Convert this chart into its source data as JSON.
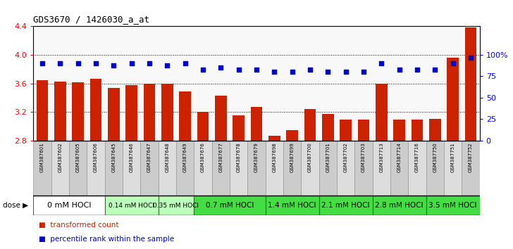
{
  "title": "GDS3670 / 1426030_a_at",
  "samples": [
    "GSM387601",
    "GSM387602",
    "GSM387605",
    "GSM387606",
    "GSM387645",
    "GSM387646",
    "GSM387647",
    "GSM387648",
    "GSM387649",
    "GSM387676",
    "GSM387677",
    "GSM387678",
    "GSM387679",
    "GSM387698",
    "GSM387699",
    "GSM387700",
    "GSM387701",
    "GSM387702",
    "GSM387703",
    "GSM387713",
    "GSM387714",
    "GSM387716",
    "GSM387750",
    "GSM387751",
    "GSM387752"
  ],
  "transformed_counts": [
    3.65,
    3.63,
    3.62,
    3.66,
    3.54,
    3.58,
    3.6,
    3.6,
    3.49,
    3.2,
    3.43,
    3.15,
    3.27,
    2.87,
    2.95,
    3.24,
    3.17,
    3.09,
    3.09,
    3.6,
    3.09,
    3.09,
    3.1,
    3.96,
    4.38
  ],
  "percentile_ranks": [
    90,
    90,
    90,
    90,
    88,
    90,
    90,
    88,
    90,
    83,
    85,
    83,
    83,
    80,
    80,
    83,
    80,
    80,
    80,
    90,
    83,
    83,
    83,
    90,
    97
  ],
  "dose_groups": [
    {
      "label": "0 mM HOCl",
      "start": 0,
      "end": 4,
      "color": "#ffffff",
      "font_size": 8
    },
    {
      "label": "0.14 mM HOCl",
      "start": 4,
      "end": 7,
      "color": "#bbffbb",
      "font_size": 6.5
    },
    {
      "label": "0.35 mM HOCl",
      "start": 7,
      "end": 9,
      "color": "#bbffbb",
      "font_size": 6.5
    },
    {
      "label": "0.7 mM HOCl",
      "start": 9,
      "end": 13,
      "color": "#44dd44",
      "font_size": 7.5
    },
    {
      "label": "1.4 mM HOCl",
      "start": 13,
      "end": 16,
      "color": "#44dd44",
      "font_size": 7.5
    },
    {
      "label": "2.1 mM HOCl",
      "start": 16,
      "end": 19,
      "color": "#44dd44",
      "font_size": 7.5
    },
    {
      "label": "2.8 mM HOCl",
      "start": 19,
      "end": 22,
      "color": "#44dd44",
      "font_size": 7.5
    },
    {
      "label": "3.5 mM HOCl",
      "start": 22,
      "end": 25,
      "color": "#44dd44",
      "font_size": 7.5
    }
  ],
  "ylim": [
    2.8,
    4.4
  ],
  "yticks": [
    2.8,
    3.2,
    3.6,
    4.0,
    4.4
  ],
  "right_yticks_vals": [
    0,
    25,
    50,
    75,
    100
  ],
  "right_yticks_labels": [
    "0",
    "25",
    "50",
    "75",
    "100%"
  ],
  "pct_ylim_max": 133.33,
  "bar_color": "#cc2200",
  "dot_color": "#0000cc",
  "bg_color": "#f8f8f8"
}
